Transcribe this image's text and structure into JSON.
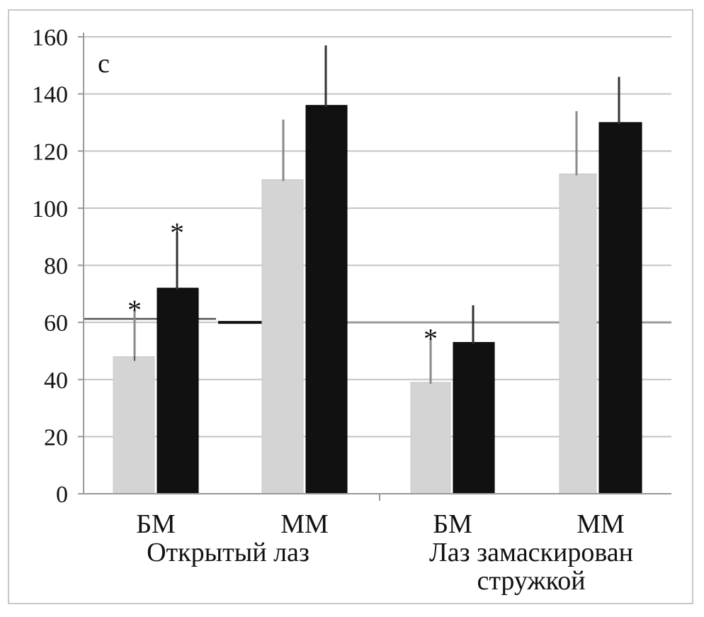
{
  "chart_data": {
    "type": "bar",
    "panel_label": "c",
    "ylim": [
      0,
      160
    ],
    "yticks": [
      0,
      20,
      40,
      60,
      80,
      100,
      120,
      140,
      160
    ],
    "grid": true,
    "reference_line": 60,
    "groups": [
      {
        "label_lines": [
          "Открытый лаз"
        ],
        "categories": [
          {
            "label": "БМ",
            "values": [
              48,
              72
            ],
            "errors": [
              16,
              19
            ],
            "stars": [
              true,
              true
            ]
          },
          {
            "label": "ММ",
            "values": [
              110,
              136
            ],
            "errors": [
              21,
              21
            ],
            "stars": [
              false,
              false
            ]
          }
        ]
      },
      {
        "label_lines": [
          "Лаз замаскирован",
          "стружкой"
        ],
        "categories": [
          {
            "label": "БМ",
            "values": [
              39,
              53
            ],
            "errors": [
              15,
              13
            ],
            "stars": [
              true,
              false
            ]
          },
          {
            "label": "ММ",
            "values": [
              112,
              130
            ],
            "errors": [
              22,
              16
            ],
            "stars": [
              false,
              false
            ]
          }
        ]
      }
    ],
    "series_colors": [
      "#d4d4d4",
      "#111111"
    ],
    "star_symbol": "*"
  }
}
